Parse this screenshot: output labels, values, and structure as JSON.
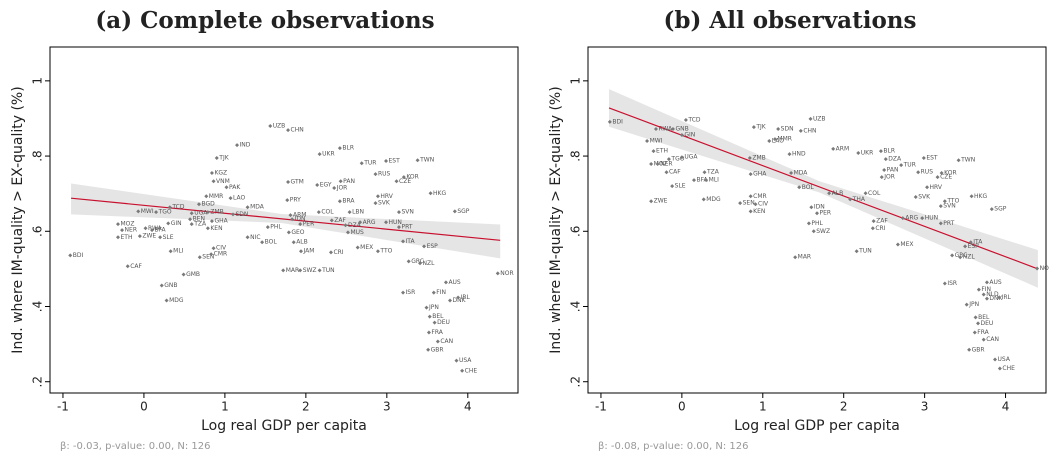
{
  "chart_data": [
    {
      "type": "scatter",
      "title": "(a) Complete observations",
      "xlabel": "Log real GDP per capita",
      "ylabel": "Ind. where IM-quality > EX-quality (%)",
      "note": "β: -0.03, p-value: 0.00, N: 126",
      "color": "#7a7a7a",
      "fit_color": "#c8102e",
      "band_color": "#dcdcdc",
      "xlim": [
        -1.16,
        4.62
      ],
      "ylim": [
        0.17,
        1.09
      ],
      "xticks": [
        -1,
        0,
        1,
        2,
        3,
        4
      ],
      "yticks": [
        {
          "value": 0.2,
          "label": ".2"
        },
        {
          "value": 0.4,
          "label": ".4"
        },
        {
          "value": 0.6,
          "label": ".6"
        },
        {
          "value": 0.8,
          "label": ".8"
        },
        {
          "value": 1,
          "label": "1"
        }
      ],
      "labels": [
        "BDI",
        "CAF",
        "MOZ",
        "NER",
        "ETH",
        "MWI",
        "ZWE",
        "RWA",
        "BFA",
        "SLE",
        "TGO",
        "TCD",
        "MLI",
        "GIN",
        "GNB",
        "MDG",
        "GMB",
        "SEN",
        "CIV",
        "CMR",
        "KEN",
        "TZA",
        "BEN",
        "UGA",
        "ZMB",
        "GHA",
        "BGD",
        "MMR",
        "LAO",
        "KGZ",
        "VNM",
        "PAK",
        "IND",
        "TJK",
        "UZB",
        "CHN",
        "SDN",
        "MDA",
        "NIC",
        "BOL",
        "PHL",
        "GTM",
        "PRY",
        "IDN",
        "GEO",
        "ALB",
        "JAM",
        "MAR",
        "SWZ",
        "TUN",
        "PER",
        "ARM",
        "UKR",
        "EGY",
        "BLR",
        "PAN",
        "JOR",
        "CRI",
        "DZA",
        "ZAF",
        "COL",
        "LBN",
        "TUR",
        "ARG",
        "MUS",
        "MEX",
        "BRA",
        "SVK",
        "HRV",
        "EST",
        "RUS",
        "CZE",
        "KOR",
        "HUN",
        "PRT",
        "TWN",
        "HKG",
        "SVN",
        "SGP",
        "ITA",
        "ESP",
        "TTO",
        "GRC",
        "NZL",
        "NOR",
        "ISR",
        "AUS",
        "FIN",
        "BEL",
        "DNK",
        "IRL",
        "JPN",
        "DEU",
        "FRA",
        "CAN",
        "GBR",
        "USA",
        "CHE"
      ],
      "x": [
        -0.91,
        -0.2,
        -0.32,
        -0.27,
        -0.32,
        -0.07,
        -0.05,
        0.02,
        0.1,
        0.2,
        0.15,
        0.32,
        0.33,
        0.3,
        0.22,
        0.28,
        0.49,
        0.69,
        0.86,
        0.83,
        0.79,
        0.59,
        0.57,
        0.59,
        0.79,
        0.84,
        0.68,
        0.77,
        1.07,
        0.84,
        0.86,
        1.02,
        1.15,
        0.9,
        1.56,
        1.78,
        1.1,
        1.28,
        1.28,
        1.46,
        1.53,
        1.78,
        1.77,
        1.83,
        1.79,
        1.85,
        1.94,
        1.72,
        1.93,
        2.17,
        1.93,
        1.81,
        2.17,
        2.14,
        2.42,
        2.43,
        2.35,
        2.31,
        2.49,
        2.32,
        2.16,
        2.54,
        2.69,
        2.67,
        2.52,
        2.64,
        2.42,
        2.86,
        2.89,
        2.99,
        2.86,
        3.12,
        3.21,
        2.99,
        3.15,
        3.38,
        3.54,
        3.15,
        3.84,
        3.2,
        3.46,
        2.89,
        3.27,
        3.41,
        4.37,
        3.2,
        3.73,
        3.58,
        3.53,
        3.78,
        3.88,
        3.49,
        3.59,
        3.52,
        3.63,
        3.51,
        3.86,
        3.93
      ],
      "y": [
        0.536,
        0.507,
        0.619,
        0.603,
        0.584,
        0.653,
        0.587,
        0.608,
        0.603,
        0.584,
        0.651,
        0.664,
        0.547,
        0.621,
        0.456,
        0.416,
        0.485,
        0.531,
        0.555,
        0.539,
        0.608,
        0.619,
        0.632,
        0.648,
        0.651,
        0.627,
        0.672,
        0.693,
        0.688,
        0.755,
        0.733,
        0.717,
        0.829,
        0.795,
        0.88,
        0.869,
        0.645,
        0.664,
        0.584,
        0.571,
        0.611,
        0.731,
        0.683,
        0.632,
        0.597,
        0.571,
        0.547,
        0.496,
        0.496,
        0.496,
        0.619,
        0.643,
        0.805,
        0.723,
        0.821,
        0.733,
        0.715,
        0.544,
        0.616,
        0.629,
        0.651,
        0.651,
        0.781,
        0.624,
        0.597,
        0.557,
        0.68,
        0.675,
        0.693,
        0.787,
        0.752,
        0.733,
        0.744,
        0.624,
        0.611,
        0.789,
        0.701,
        0.651,
        0.653,
        0.573,
        0.56,
        0.547,
        0.52,
        0.515,
        0.488,
        0.437,
        0.464,
        0.437,
        0.373,
        0.416,
        0.424,
        0.397,
        0.357,
        0.331,
        0.307,
        0.285,
        0.256,
        0.229
      ],
      "fit": {
        "x": [
          -0.9,
          4.4
        ],
        "y": [
          0.688,
          0.576
        ]
      },
      "band": {
        "x": [
          -0.9,
          1.7,
          4.4
        ],
        "lower": [
          0.645,
          0.622,
          0.528
        ],
        "upper": [
          0.727,
          0.646,
          0.618
        ]
      }
    },
    {
      "type": "scatter",
      "title": "(b) All observations",
      "xlabel": "Log real GDP per capita",
      "ylabel": "Ind. where IM-quality > EX-quality (%)",
      "note": "β: -0.08, p-value: 0.00, N: 126",
      "color": "#7a7a7a",
      "fit_color": "#c8102e",
      "band_color": "#dcdcdc",
      "xlim": [
        -1.16,
        4.5
      ],
      "ylim": [
        0.17,
        1.09
      ],
      "xticks": [
        -1,
        0,
        1,
        2,
        3,
        4
      ],
      "yticks": [
        {
          "value": 0.2,
          "label": ".2"
        },
        {
          "value": 0.4,
          "label": ".4"
        },
        {
          "value": 0.6,
          "label": ".6"
        },
        {
          "value": 0.8,
          "label": ".8"
        },
        {
          "value": 1,
          "label": "1"
        }
      ],
      "labels": [
        "BDI",
        "RWA",
        "GNB",
        "TCD",
        "MWI",
        "GIN",
        "ETH",
        "MOZ",
        "NER",
        "CAF",
        "TGO",
        "UGA",
        "BFA",
        "MLI",
        "SLE",
        "ZWE",
        "MDG",
        "SEN",
        "CIV",
        "CMR",
        "KEN",
        "TZA",
        "GHA",
        "ZMB",
        "TJK",
        "SDN",
        "UZB",
        "CHN",
        "LAO",
        "MMR",
        "HND",
        "BOL",
        "MDA",
        "UKR",
        "BLR",
        "ARM",
        "PHL",
        "MAR",
        "SWZ",
        "TUN",
        "IDN",
        "PER",
        "ALB",
        "CRI",
        "ZAF",
        "MEX",
        "ARG",
        "THA",
        "COL",
        "DZA",
        "PAN",
        "JOR",
        "TUR",
        "RUS",
        "EST",
        "TWN",
        "CZE",
        "KOR",
        "SVK",
        "HRV",
        "HUN",
        "PRT",
        "SVN",
        "TTO",
        "HKG",
        "SGP",
        "ITA",
        "ESP",
        "GRC",
        "NZL",
        "ISR",
        "AUS",
        "FIN",
        "NLD",
        "DNK",
        "IRL",
        "JPN",
        "BEL",
        "DEU",
        "FRA",
        "CAN",
        "GBR",
        "USA",
        "CHE",
        "NOR"
      ],
      "x": [
        -0.89,
        -0.32,
        -0.11,
        0.05,
        -0.43,
        0,
        -0.35,
        -0.38,
        -0.3,
        -0.19,
        -0.16,
        0,
        0.15,
        0.3,
        -0.12,
        -0.38,
        0.27,
        0.72,
        0.91,
        0.85,
        0.85,
        0.28,
        0.85,
        0.84,
        0.89,
        1.19,
        1.59,
        1.47,
        1.08,
        1.15,
        1.33,
        1.45,
        1.35,
        2.18,
        2.46,
        1.87,
        1.57,
        1.4,
        1.63,
        2.16,
        1.6,
        1.67,
        1.82,
        2.36,
        2.37,
        2.67,
        2.73,
        2.08,
        2.27,
        2.52,
        2.5,
        2.47,
        2.71,
        2.92,
        2.99,
        3.42,
        3.16,
        3.21,
        2.89,
        3.03,
        2.97,
        3.2,
        3.2,
        3.25,
        3.58,
        3.83,
        3.57,
        3.5,
        3.34,
        3.44,
        3.25,
        3.77,
        3.67,
        3.73,
        3.77,
        3.92,
        3.52,
        3.63,
        3.66,
        3.62,
        3.73,
        3.55,
        3.87,
        3.93,
        4.39
      ],
      "y": [
        0.891,
        0.872,
        0.872,
        0.896,
        0.84,
        0.856,
        0.813,
        0.779,
        0.779,
        0.757,
        0.792,
        0.797,
        0.736,
        0.736,
        0.72,
        0.68,
        0.685,
        0.675,
        0.672,
        0.693,
        0.653,
        0.757,
        0.752,
        0.795,
        0.877,
        0.872,
        0.899,
        0.867,
        0.84,
        0.845,
        0.805,
        0.717,
        0.755,
        0.808,
        0.813,
        0.819,
        0.621,
        0.531,
        0.6,
        0.547,
        0.664,
        0.648,
        0.701,
        0.608,
        0.627,
        0.565,
        0.635,
        0.685,
        0.701,
        0.792,
        0.763,
        0.744,
        0.776,
        0.757,
        0.795,
        0.789,
        0.744,
        0.755,
        0.691,
        0.717,
        0.635,
        0.621,
        0.667,
        0.68,
        0.693,
        0.659,
        0.571,
        0.56,
        0.536,
        0.531,
        0.461,
        0.464,
        0.445,
        0.432,
        0.421,
        0.424,
        0.405,
        0.371,
        0.355,
        0.331,
        0.312,
        0.285,
        0.259,
        0.235,
        0.501
      ],
      "fit": {
        "x": [
          -0.9,
          4.4
        ],
        "y": [
          0.928,
          0.5
        ]
      },
      "band": {
        "x": [
          -0.9,
          1.7,
          4.4
        ],
        "lower": [
          0.878,
          0.703,
          0.45
        ],
        "upper": [
          0.978,
          0.733,
          0.55
        ]
      }
    }
  ]
}
